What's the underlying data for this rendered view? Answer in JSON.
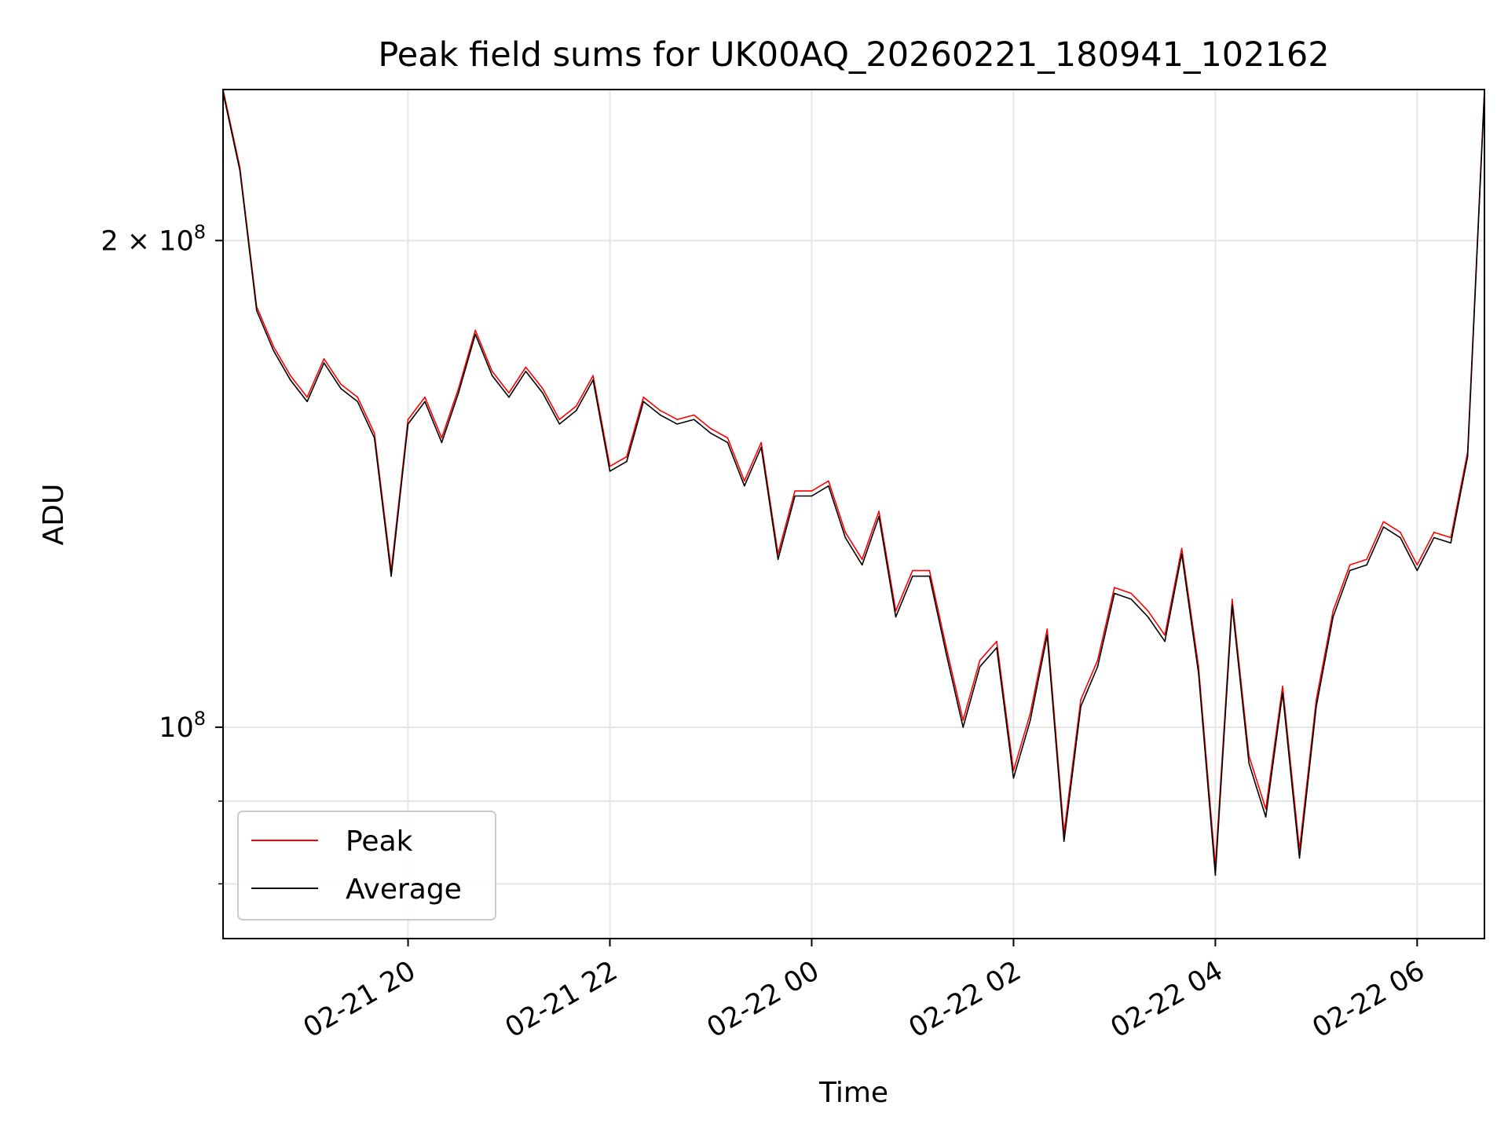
{
  "chart_data": {
    "type": "line",
    "title": "Peak field sums for UK00AQ_20260221_180941_102162",
    "xlabel": "Time",
    "ylabel": "ADU",
    "yscale": "log",
    "grid": true,
    "legend_position": "lower-left",
    "xlim": [
      "2026-02-21 18:10",
      "2026-02-22 06:40"
    ],
    "ylim": [
      74000000,
      248000000
    ],
    "x_ticks": [
      {
        "value": "2026-02-21 20:00",
        "label": "02-21 20"
      },
      {
        "value": "2026-02-21 22:00",
        "label": "02-21 22"
      },
      {
        "value": "2026-02-22 00:00",
        "label": "02-22 00"
      },
      {
        "value": "2026-02-22 02:00",
        "label": "02-22 02"
      },
      {
        "value": "2026-02-22 04:00",
        "label": "02-22 04"
      },
      {
        "value": "2026-02-22 06:00",
        "label": "02-22 06"
      }
    ],
    "y_ticks": [
      {
        "value": 200000000,
        "label_mantissa": "2 × 10",
        "label_exp": "8"
      },
      {
        "value": 100000000,
        "label_mantissa": "10",
        "label_exp": "8"
      }
    ],
    "y_minor_gridlines": [
      90000000,
      80000000
    ],
    "x": [
      "2026-02-21 18:10",
      "2026-02-21 18:20",
      "2026-02-21 18:30",
      "2026-02-21 18:40",
      "2026-02-21 18:50",
      "2026-02-21 19:00",
      "2026-02-21 19:10",
      "2026-02-21 19:20",
      "2026-02-21 19:30",
      "2026-02-21 19:40",
      "2026-02-21 19:50",
      "2026-02-21 20:00",
      "2026-02-21 20:10",
      "2026-02-21 20:20",
      "2026-02-21 20:30",
      "2026-02-21 20:40",
      "2026-02-21 20:50",
      "2026-02-21 21:00",
      "2026-02-21 21:10",
      "2026-02-21 21:20",
      "2026-02-21 21:30",
      "2026-02-21 21:40",
      "2026-02-21 21:50",
      "2026-02-21 22:00",
      "2026-02-21 22:10",
      "2026-02-21 22:20",
      "2026-02-21 22:30",
      "2026-02-21 22:40",
      "2026-02-21 22:50",
      "2026-02-21 23:00",
      "2026-02-21 23:10",
      "2026-02-21 23:20",
      "2026-02-21 23:30",
      "2026-02-21 23:40",
      "2026-02-21 23:50",
      "2026-02-22 00:00",
      "2026-02-22 00:10",
      "2026-02-22 00:20",
      "2026-02-22 00:30",
      "2026-02-22 00:40",
      "2026-02-22 00:50",
      "2026-02-22 01:00",
      "2026-02-22 01:10",
      "2026-02-22 01:20",
      "2026-02-22 01:30",
      "2026-02-22 01:40",
      "2026-02-22 01:50",
      "2026-02-22 02:00",
      "2026-02-22 02:10",
      "2026-02-22 02:20",
      "2026-02-22 02:30",
      "2026-02-22 02:40",
      "2026-02-22 02:50",
      "2026-02-22 03:00",
      "2026-02-22 03:10",
      "2026-02-22 03:20",
      "2026-02-22 03:30",
      "2026-02-22 03:40",
      "2026-02-22 03:50",
      "2026-02-22 04:00",
      "2026-02-22 04:10",
      "2026-02-22 04:20",
      "2026-02-22 04:30",
      "2026-02-22 04:40",
      "2026-02-22 04:50",
      "2026-02-22 05:00",
      "2026-02-22 05:10",
      "2026-02-22 05:20",
      "2026-02-22 05:30",
      "2026-02-22 05:40",
      "2026-02-22 05:50",
      "2026-02-22 06:00",
      "2026-02-22 06:10",
      "2026-02-22 06:20",
      "2026-02-22 06:30",
      "2026-02-22 06:40"
    ],
    "series": [
      {
        "name": "Peak",
        "color": "#ff0000",
        "values": [
          248000000,
          222000000,
          182000000,
          172000000,
          165000000,
          160000000,
          169000000,
          163000000,
          160000000,
          152000000,
          125000000,
          155000000,
          160000000,
          151000000,
          162000000,
          176000000,
          166000000,
          161000000,
          167000000,
          162000000,
          155000000,
          158000000,
          165000000,
          145000000,
          147000000,
          160000000,
          157000000,
          155000000,
          156000000,
          153000000,
          151000000,
          142000000,
          150000000,
          128000000,
          140000000,
          140000000,
          142000000,
          132000000,
          127000000,
          136000000,
          118000000,
          125000000,
          125000000,
          112000000,
          101000000,
          110000000,
          113000000,
          94000000,
          102000000,
          115000000,
          86000000,
          104000000,
          110000000,
          122000000,
          121000000,
          118000000,
          114000000,
          129000000,
          109000000,
          82000000,
          120000000,
          96000000,
          89000000,
          106000000,
          84000000,
          104000000,
          118000000,
          126000000,
          127000000,
          134000000,
          132000000,
          126000000,
          132000000,
          131000000,
          148000000,
          248000000
        ]
      },
      {
        "name": "Average",
        "color": "#000000",
        "values": [
          247000000,
          221000000,
          181000000,
          171000000,
          164000000,
          159000000,
          168000000,
          162000000,
          159000000,
          151000000,
          124000000,
          154000000,
          159000000,
          150000000,
          161000000,
          175000000,
          165000000,
          160000000,
          166000000,
          161000000,
          154000000,
          157000000,
          164000000,
          144000000,
          146000000,
          159000000,
          156000000,
          154000000,
          155000000,
          152000000,
          150000000,
          141000000,
          149000000,
          127000000,
          139000000,
          139000000,
          141000000,
          131000000,
          126000000,
          135000000,
          117000000,
          124000000,
          124000000,
          111000000,
          100000000,
          109000000,
          112000000,
          93000000,
          101000000,
          114000000,
          85000000,
          103000000,
          109000000,
          121000000,
          120000000,
          117000000,
          113000000,
          128000000,
          108000000,
          81000000,
          119000000,
          95000000,
          88000000,
          105000000,
          83000000,
          103000000,
          117000000,
          125000000,
          126000000,
          133000000,
          131000000,
          125000000,
          131000000,
          130000000,
          147000000,
          247000000
        ]
      }
    ]
  }
}
